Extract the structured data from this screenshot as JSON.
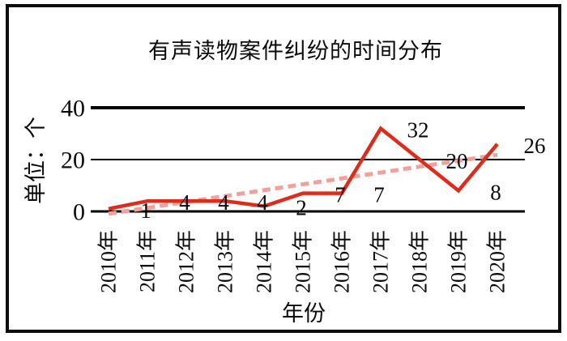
{
  "chart_data": {
    "type": "line",
    "title": "有声读物案件纠纷的时间分布",
    "xlabel": "年份",
    "ylabel": "单位：个",
    "categories": [
      "2010年",
      "2011年",
      "2012年",
      "2013年",
      "2014年",
      "2015年",
      "2016年",
      "2017年",
      "2018年",
      "2019年",
      "2020年"
    ],
    "series": [
      {
        "name": "cases-solid-line",
        "values": [
          1,
          4,
          4,
          4,
          2,
          7,
          7,
          32,
          20,
          8,
          26
        ],
        "color": "#df2b1a",
        "style": "solid"
      },
      {
        "name": "linear-trendline-dashed",
        "derived": "least-squares-fit-of-cases-solid-line",
        "color": "#f2a09a",
        "style": "dashed"
      }
    ],
    "data_labels": [
      "1",
      "4",
      "4",
      "4",
      "2",
      "7",
      "7",
      "32",
      "20",
      "8",
      "26"
    ],
    "ylim": [
      0,
      40
    ],
    "yticks": [
      0,
      20,
      40
    ],
    "grid": true,
    "legend": "none"
  },
  "colors": {
    "line": "#df2b1a",
    "trendline": "#f2a09a",
    "grid": "#000000",
    "text": "#0a0a0a",
    "background": "#ffffff",
    "border": "#0d0d0d"
  }
}
